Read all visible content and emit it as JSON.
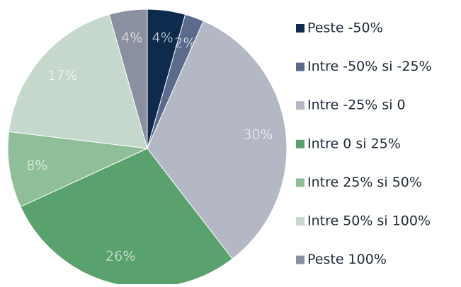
{
  "chart_data": {
    "type": "pie",
    "categories": [
      "Peste -50%",
      "Intre -50% si -25%",
      "Intre -25% si 0",
      "Intre 0 si 25%",
      "Intre 25% si 50%",
      "Intre 50% si 100%",
      "Peste 100%"
    ],
    "values": [
      4,
      2,
      30,
      26,
      8,
      17,
      4
    ],
    "value_labels": [
      "4%",
      "2%",
      "30%",
      "26%",
      "8%",
      "17%",
      "4%"
    ],
    "colors": [
      "#0e2b4d",
      "#5b6b8b",
      "#b4b8c5",
      "#59a16d",
      "#8fbf99",
      "#c6d8cb",
      "#8a909f"
    ],
    "legend": "right"
  }
}
